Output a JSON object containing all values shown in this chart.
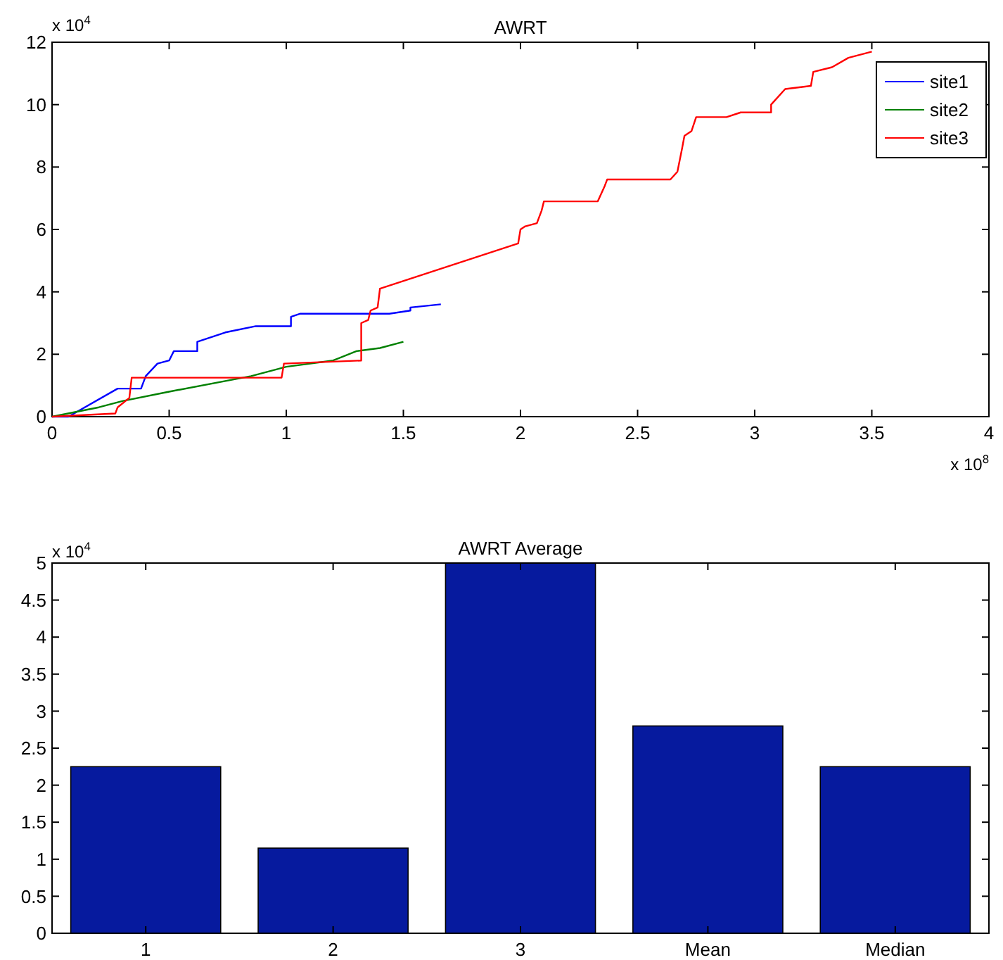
{
  "chart_data": [
    {
      "type": "line",
      "title": "AWRT",
      "xlim": [
        0,
        4
      ],
      "xticks": [
        0,
        0.5,
        1,
        1.5,
        2,
        2.5,
        3,
        3.5,
        4
      ],
      "ylim": [
        0,
        12
      ],
      "yticks": [
        0,
        2,
        4,
        6,
        8,
        10,
        12
      ],
      "legend": "top right",
      "grid": false,
      "annotations": [
        "x 10$^{4}$",
        "x 10$^{8}$"
      ],
      "series": [
        {
          "name": "site1",
          "color": "#0000ff",
          "x": [
            0,
            0.07,
            0.28,
            0.38,
            0.4,
            0.45,
            0.5,
            0.52,
            0.62,
            0.62,
            0.74,
            0.87,
            1.02,
            1.02,
            1.06,
            1.44,
            1.53,
            1.53,
            1.66
          ],
          "values": [
            0,
            0,
            0.9,
            0.9,
            1.3,
            1.7,
            1.8,
            2.1,
            2.1,
            2.4,
            2.7,
            2.9,
            2.9,
            3.2,
            3.3,
            3.3,
            3.4,
            3.5,
            3.6
          ]
        },
        {
          "name": "site2",
          "color": "#008000",
          "x": [
            0,
            0.2,
            0.3,
            0.5,
            0.85,
            1.0,
            1.2,
            1.3,
            1.4,
            1.5
          ],
          "values": [
            0,
            0.3,
            0.5,
            0.8,
            1.3,
            1.6,
            1.8,
            2.1,
            2.2,
            2.4
          ]
        },
        {
          "name": "site3",
          "color": "#ff0000",
          "x": [
            0,
            0.27,
            0.28,
            0.33,
            0.34,
            0.98,
            0.99,
            1.32,
            1.32,
            1.35,
            1.36,
            1.39,
            1.4,
            1.99,
            2.0,
            2.02,
            2.07,
            2.09,
            2.1,
            2.33,
            2.36,
            2.37,
            2.64,
            2.67,
            2.69,
            2.7,
            2.73,
            2.75,
            2.88,
            2.94,
            3.07,
            3.07,
            3.13,
            3.24,
            3.25,
            3.33,
            3.4,
            3.5
          ],
          "values": [
            0,
            0.1,
            0.3,
            0.6,
            1.25,
            1.25,
            1.7,
            1.8,
            3.0,
            3.1,
            3.4,
            3.5,
            4.1,
            5.55,
            6.0,
            6.1,
            6.2,
            6.6,
            6.9,
            6.9,
            7.4,
            7.6,
            7.6,
            7.85,
            8.6,
            9.0,
            9.15,
            9.6,
            9.6,
            9.75,
            9.75,
            10.0,
            10.5,
            10.6,
            11.05,
            11.2,
            11.5,
            11.7
          ]
        }
      ]
    },
    {
      "type": "bar",
      "title": "AWRT Average",
      "categories": [
        "1",
        "2",
        "3",
        "Mean",
        "Median"
      ],
      "values": [
        2.25,
        1.15,
        5,
        2.8,
        2.25
      ],
      "color": "#061a9e",
      "ylim": [
        0,
        5
      ],
      "yticks": [
        0,
        0.5,
        1,
        1.5,
        2,
        2.5,
        3,
        3.5,
        4,
        4.5,
        5
      ],
      "grid": false,
      "annotations": [
        "x 10$^{4}$"
      ]
    }
  ]
}
